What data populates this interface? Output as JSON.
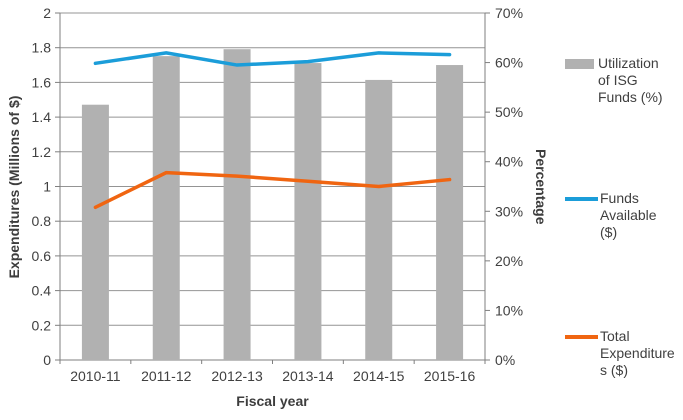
{
  "chart_data": {
    "type": "combo",
    "title": "",
    "categories": [
      "2010-11",
      "2011-12",
      "2012-13",
      "2013-14",
      "2014-15",
      "2015-16"
    ],
    "series": [
      {
        "name": "Utilization of ISG Funds (%)",
        "type": "bar",
        "axis": "right",
        "color": "#B1B1B1",
        "values": [
          51.5,
          61.3,
          62.7,
          59.9,
          56.5,
          59.5
        ]
      },
      {
        "name": "Funds Available ($)",
        "type": "line",
        "axis": "left",
        "color": "#1B9DD9",
        "values": [
          1.71,
          1.77,
          1.7,
          1.72,
          1.77,
          1.76
        ]
      },
      {
        "name": "Total Expenditures ($)",
        "type": "line",
        "axis": "left",
        "color": "#F06511",
        "values": [
          0.88,
          1.08,
          1.06,
          1.03,
          1.0,
          1.04
        ]
      }
    ],
    "left_axis": {
      "title": "Expenditures (Millions of $)",
      "min": 0,
      "max": 2,
      "tick_labels": [
        "0",
        "0.2",
        "0.4",
        "0.6",
        "0.8",
        "1",
        "1.2",
        "1.4",
        "1.6",
        "1.8",
        "2"
      ]
    },
    "right_axis": {
      "title": "Percentage",
      "min": 0,
      "max": 70,
      "tick_labels": [
        "0%",
        "10%",
        "20%",
        "30%",
        "40%",
        "50%",
        "60%",
        "70%"
      ]
    },
    "x_axis": {
      "title": "Fiscal year"
    },
    "legend": [
      {
        "label": "Utilization of ISG Funds (%)",
        "label_wrapped": "Utilization\nof ISG\nFunds (%)",
        "swatch": "bar",
        "series_index": 0
      },
      {
        "label": "Funds Available ($)",
        "label_wrapped": "Funds\nAvailable\n($)",
        "swatch": "line",
        "series_index": 1
      },
      {
        "label": "Total Expenditures ($)",
        "label_wrapped": "Total\nExpenditure\ns ($)",
        "swatch": "line",
        "series_index": 2
      }
    ],
    "legend_position": "right",
    "grid": true,
    "colors": {
      "gridline": "#949494",
      "axis": "#7f7f7f",
      "text": "#404040",
      "background": "#ffffff"
    }
  }
}
